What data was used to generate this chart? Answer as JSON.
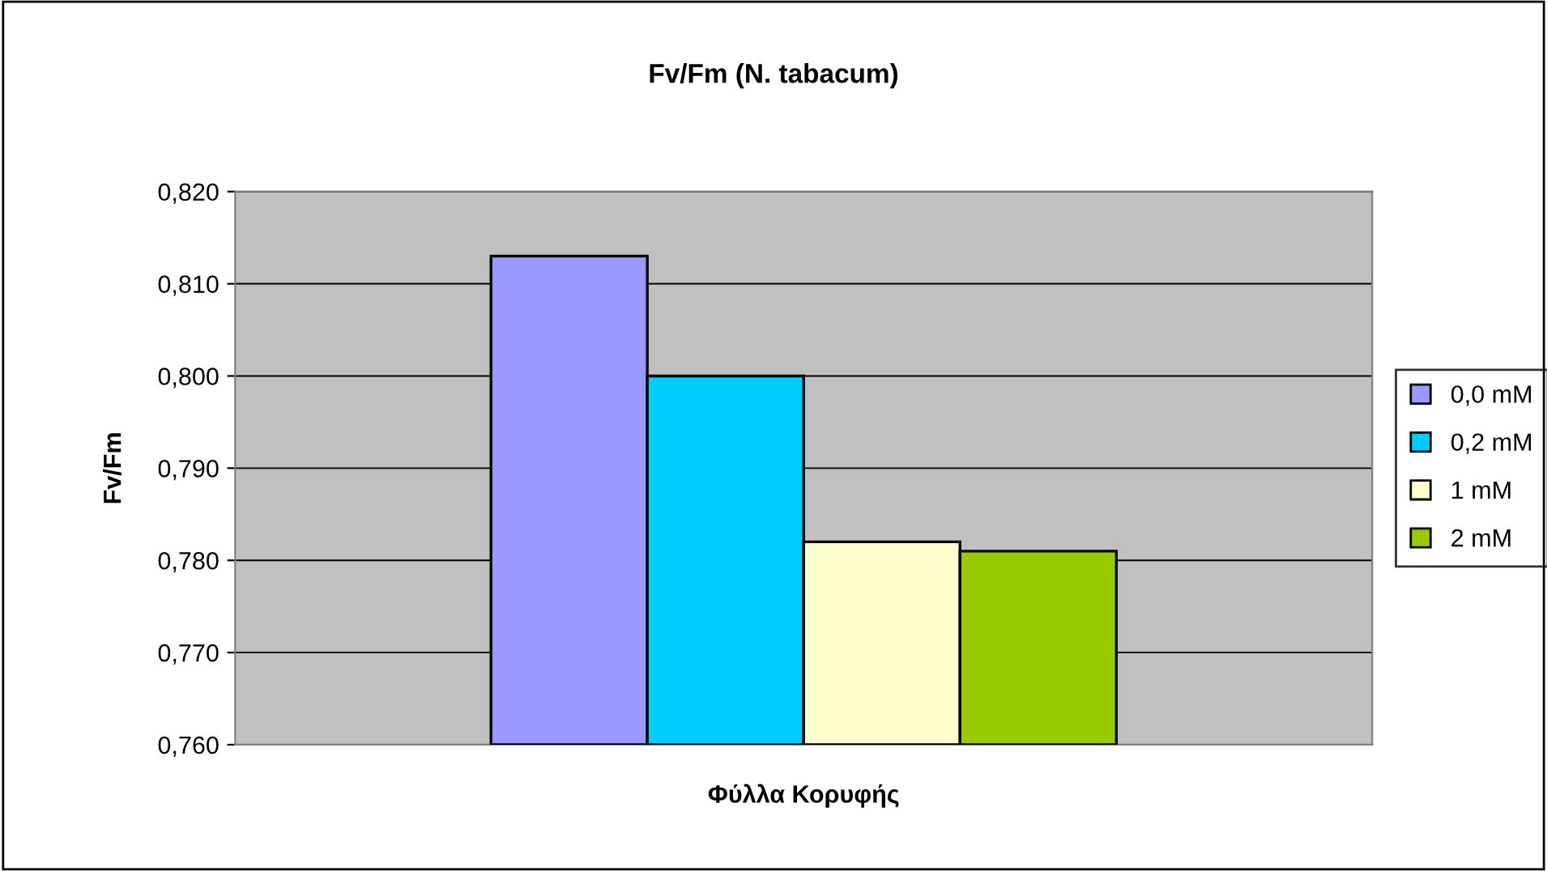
{
  "chart_data": {
    "type": "bar",
    "title": "Fv/Fm (N. tabacum)",
    "xlabel": "Φύλλα Κορυφής",
    "ylabel": "Fv/Fm",
    "categories": [
      null
    ],
    "series": [
      {
        "name": "0,0 mM",
        "color": "#9999ff",
        "values": [
          0.813
        ]
      },
      {
        "name": "0,2 mM",
        "color": "#00ccff",
        "values": [
          0.8
        ]
      },
      {
        "name": "1 mM",
        "color": "#ffffcc",
        "values": [
          0.782
        ]
      },
      {
        "name": "2 mM",
        "color": "#99cc00",
        "values": [
          0.781
        ]
      }
    ],
    "ylim": [
      0.76,
      0.82
    ],
    "yticks": [
      {
        "value": 0.76,
        "label": "0,760"
      },
      {
        "value": 0.77,
        "label": "0,770"
      },
      {
        "value": 0.78,
        "label": "0,780"
      },
      {
        "value": 0.79,
        "label": "0,790"
      },
      {
        "value": 0.8,
        "label": "0,800"
      },
      {
        "value": 0.81,
        "label": "0,810"
      },
      {
        "value": 0.82,
        "label": "0,820"
      }
    ],
    "grid": "y",
    "legend": "right"
  }
}
